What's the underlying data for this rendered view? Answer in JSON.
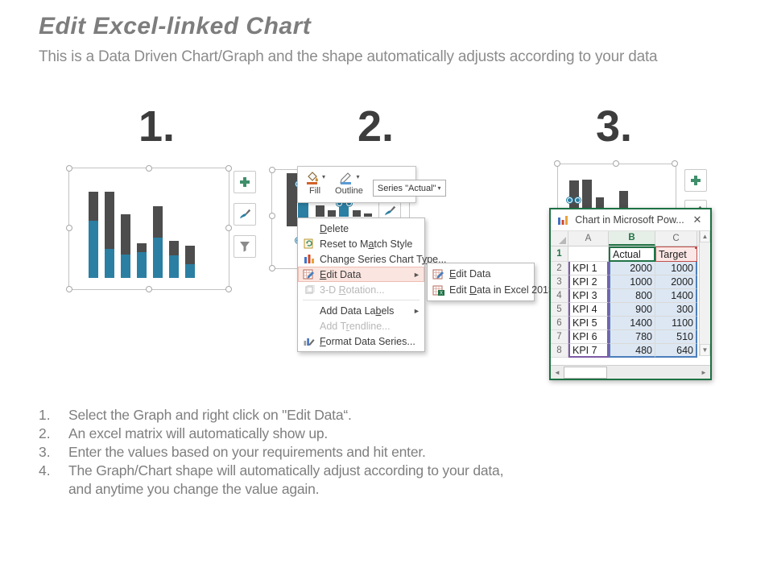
{
  "title": "Edit Excel-linked Chart",
  "subtitle": "This is a Data Driven Chart/Graph and the shape automatically adjusts according to your data",
  "step_numbers": {
    "one": "1.",
    "two": "2.",
    "three": "3."
  },
  "colors": {
    "actual_blue": "#2b7fa3",
    "target_gray": "#4d4d4d",
    "excel_green": "#1e7145",
    "menu_highlight": "#fbe5e0",
    "plus_green": "#3f8f6b"
  },
  "chart_data": {
    "type": "bar",
    "stacked": true,
    "title": "",
    "xlabel": "",
    "ylabel": "",
    "categories": [
      "KPI 1",
      "KPI 2",
      "KPI 3",
      "KPI 4",
      "KPI 5",
      "KPI 6",
      "KPI 7"
    ],
    "series": [
      {
        "name": "Actual",
        "color": "#2b7fa3",
        "values": [
          2000,
          1000,
          800,
          900,
          1400,
          780,
          480
        ]
      },
      {
        "name": "Target",
        "color": "#4d4d4d",
        "values": [
          1000,
          2000,
          1400,
          300,
          1100,
          510,
          640
        ]
      }
    ],
    "ylim": [
      0,
      3000
    ],
    "grid": false,
    "legend": false
  },
  "mini_toolbar": {
    "fill_label": "Fill",
    "outline_label": "Outline",
    "series_dropdown": "Series \"Actual\"",
    "caret": "▾"
  },
  "context_menu": {
    "items": [
      {
        "name": "delete",
        "label": "Delete",
        "u": "D",
        "icon": "none",
        "state": "normal",
        "arrow": false
      },
      {
        "name": "reset-to-match-style",
        "label": "Reset to Match Style",
        "u": "a",
        "icon": "reset",
        "state": "normal",
        "arrow": false
      },
      {
        "name": "change-series-chart-type",
        "label": "Change Series Chart Type...",
        "u": "y",
        "icon": "chart-type",
        "state": "normal",
        "arrow": false
      },
      {
        "name": "edit-data",
        "label": "Edit Data",
        "u": "E",
        "icon": "edit-data",
        "state": "highlighted",
        "arrow": true
      },
      {
        "name": "3d-rotation",
        "label": "3-D Rotation...",
        "u": "R",
        "icon": "rotation",
        "state": "disabled",
        "arrow": false
      },
      {
        "name": "add-data-labels",
        "label": "Add Data Labels",
        "u": "b",
        "icon": "none",
        "state": "normal",
        "arrow": true
      },
      {
        "name": "add-trendline",
        "label": "Add Trendline...",
        "u": "r",
        "icon": "none",
        "state": "disabled",
        "arrow": false
      },
      {
        "name": "format-data-series",
        "label": "Format Data Series...",
        "u": "F",
        "icon": "format-series",
        "state": "normal",
        "arrow": false
      }
    ],
    "submenu_arrow": "►"
  },
  "submenu": {
    "items": [
      {
        "name": "edit-data",
        "label": "Edit Data",
        "u": "E",
        "icon": "edit-data"
      },
      {
        "name": "edit-data-in-excel-2013",
        "label": "Edit Data in Excel 2013",
        "u": "D",
        "icon": "edit-data-excel"
      }
    ]
  },
  "excel": {
    "window_title": "Chart in Microsoft Pow...",
    "close_glyph": "✕",
    "column_headers": [
      "A",
      "B",
      "C"
    ],
    "selected_column": "B",
    "rows": [
      {
        "n": "1",
        "a": "",
        "b": "Actual",
        "c": "Target"
      },
      {
        "n": "2",
        "a": "KPI 1",
        "b": "2000",
        "c": "1000"
      },
      {
        "n": "3",
        "a": "KPI 2",
        "b": "1000",
        "c": "2000"
      },
      {
        "n": "4",
        "a": "KPI 3",
        "b": "800",
        "c": "1400"
      },
      {
        "n": "5",
        "a": "KPI 4",
        "b": "900",
        "c": "300"
      },
      {
        "n": "6",
        "a": "KPI 5",
        "b": "1400",
        "c": "1100"
      },
      {
        "n": "7",
        "a": "KPI 6",
        "b": "780",
        "c": "510"
      },
      {
        "n": "8",
        "a": "KPI 7",
        "b": "480",
        "c": "640"
      }
    ],
    "scroll_glyphs": {
      "up": "▲",
      "down": "▼",
      "left": "◄",
      "right": "►"
    }
  },
  "instructions": [
    {
      "num": "1.",
      "text": "Select the Graph and right click on \"Edit Data“."
    },
    {
      "num": "2.",
      "text": "An excel matrix will automatically show up."
    },
    {
      "num": "3.",
      "text": "Enter the values based on your requirements and hit enter."
    },
    {
      "num": "4.",
      "text": "The Graph/Chart shape will automatically adjust according to your data,\nand anytime you change the value again."
    }
  ]
}
